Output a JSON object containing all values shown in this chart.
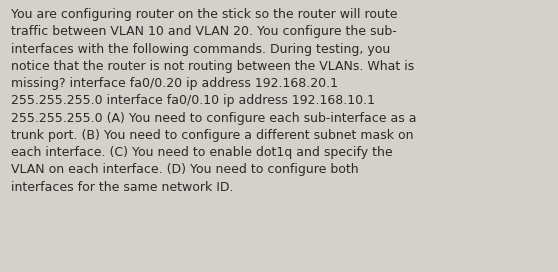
{
  "background_color": "#d4d1ca",
  "text_color": "#2a2a2a",
  "font_size": 9.0,
  "font_family": "DejaVu Sans",
  "fig_width": 5.58,
  "fig_height": 2.72,
  "dpi": 100,
  "lines": [
    "You are configuring router on the stick so the router will route",
    "traffic between VLAN 10 and VLAN 20. You configure the sub-",
    "interfaces with the following commands. During testing, you",
    "notice that the router is not routing between the VLANs. What is",
    "missing? interface fa0/0.20 ip address 192.168.20.1",
    "255.255.255.0 interface fa0/0.10 ip address 192.168.10.1",
    "255.255.255.0 (A) You need to configure each sub-interface as a",
    "trunk port. (B) You need to configure a different subnet mask on",
    "each interface. (C) You need to enable dot1q and specify the",
    "VLAN on each interface. (D) You need to configure both",
    "interfaces for the same network ID."
  ]
}
